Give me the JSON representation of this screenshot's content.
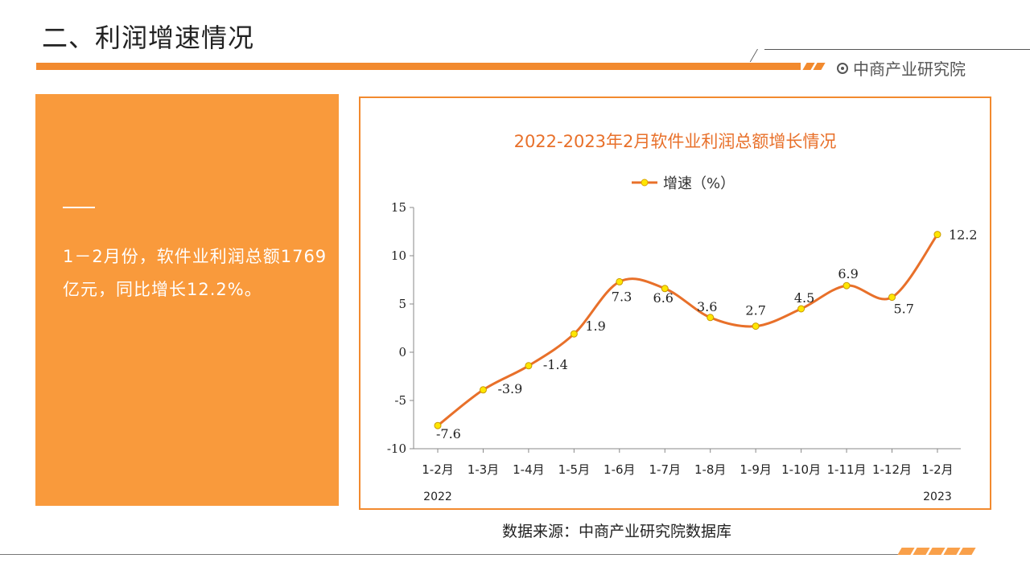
{
  "header": {
    "title": "二、利润增速情况",
    "brand": "中商产业研究院"
  },
  "left_panel": {
    "text": "1－2月份，软件业利润总额1769亿元，同比增长12.2%。"
  },
  "footer": {
    "source": "数据来源：中商产业研究院数据库"
  },
  "colors": {
    "accent": "#f28a2e",
    "panel": "#f99a3c",
    "line": "#e8702a",
    "marker": "#ffe600"
  },
  "chart_data": {
    "type": "line",
    "title": "2022-2023年2月软件业利润总额增长情况",
    "legend": "增速（%）",
    "categories": [
      "1-2月",
      "1-3月",
      "1-4月",
      "1-5月",
      "1-6月",
      "1-7月",
      "1-8月",
      "1-9月",
      "1-10月",
      "1-11月",
      "1-12月",
      "1-2月"
    ],
    "year_labels": [
      {
        "text": "2022",
        "index": 0
      },
      {
        "text": "2023",
        "index": 11
      }
    ],
    "series": [
      {
        "name": "增速（%）",
        "values": [
          -7.6,
          -3.9,
          -1.4,
          1.9,
          7.3,
          6.6,
          3.6,
          2.7,
          4.5,
          6.9,
          5.7,
          12.2
        ]
      }
    ],
    "yticks": [
      15,
      10,
      5,
      0,
      -5,
      -10
    ],
    "ylim": [
      -10,
      15
    ],
    "xlabel": "",
    "ylabel": ""
  }
}
